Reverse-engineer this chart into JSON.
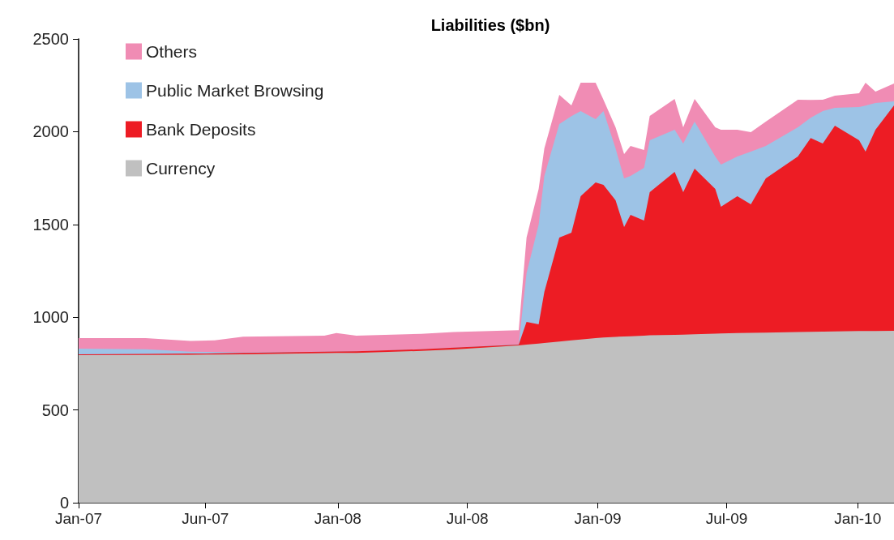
{
  "chart_data": {
    "type": "area",
    "title": "Liabilities ($bn)",
    "stacked": true,
    "legend": "top left",
    "grid": false,
    "x": [
      "2007-01-03",
      "2007-04-07",
      "2007-06-09",
      "2007-07-13",
      "2007-08-22",
      "2007-12-14",
      "2007-12-31",
      "2008-01-28",
      "2008-04-28",
      "2008-06-13",
      "2008-09-12",
      "2008-09-23",
      "2008-10-10",
      "2008-10-18",
      "2008-11-08",
      "2008-11-25",
      "2008-12-08",
      "2008-12-29",
      "2009-01-09",
      "2009-01-26",
      "2009-02-07",
      "2009-02-16",
      "2009-03-07",
      "2009-03-15",
      "2009-04-19",
      "2009-05-01",
      "2009-05-17",
      "2009-06-15",
      "2009-06-23",
      "2009-07-16",
      "2009-08-04",
      "2009-08-25",
      "2009-10-09",
      "2009-10-27",
      "2009-11-13",
      "2009-11-30",
      "2010-01-03",
      "2010-01-12",
      "2010-01-26",
      "2010-02-21"
    ],
    "series": [
      {
        "name": "Currency",
        "color": "#c0c0c0",
        "values": [
          795,
          797,
          798,
          799,
          800,
          806,
          807,
          808,
          818,
          826,
          848,
          852,
          858,
          861,
          869,
          875,
          880,
          887,
          890,
          894,
          896,
          897,
          900,
          902,
          905,
          906,
          908,
          911,
          912,
          915,
          916,
          917,
          920,
          921,
          922,
          923,
          925,
          925,
          926,
          927
        ]
      },
      {
        "name": "Bank Deposits",
        "color": "#ed1c24",
        "values": [
          5,
          5,
          6,
          6,
          7,
          8,
          8,
          8,
          9,
          10,
          4,
          123,
          103,
          275,
          560,
          580,
          772,
          839,
          823,
          736,
          590,
          655,
          621,
          772,
          878,
          768,
          893,
          780,
          683,
          737,
          692,
          831,
          946,
          1045,
          1014,
          1109,
          1029,
          967,
          1084,
          1215
        ]
      },
      {
        "name": "Public Market Browsing",
        "color": "#9dc3e6",
        "values": [
          30,
          25,
          10,
          8,
          3,
          0,
          0,
          0,
          0,
          0,
          3,
          262,
          538,
          625,
          612,
          629,
          459,
          341,
          398,
          280,
          262,
          209,
          284,
          280,
          227,
          262,
          253,
          175,
          228,
          214,
          284,
          175,
          158,
          109,
          175,
          96,
          179,
          249,
          145,
          21
        ]
      },
      {
        "name": "Others",
        "color": "#f08cb4",
        "values": [
          57,
          60,
          58,
          62,
          85,
          86,
          100,
          84,
          83,
          84,
          75,
          192,
          192,
          149,
          157,
          58,
          153,
          197,
          61,
          114,
          131,
          162,
          96,
          131,
          167,
          88,
          123,
          158,
          187,
          144,
          105,
          131,
          148,
          96,
          61,
          66,
          74,
          123,
          61,
          97
        ]
      }
    ],
    "xlim": [
      "2007-01-03",
      "2010-02-21"
    ],
    "xticks": [
      {
        "value": "2007-01-03",
        "label": "Jan-07"
      },
      {
        "value": "2007-06-30",
        "label": "Jun-07"
      },
      {
        "value": "2008-01-02",
        "label": "Jan-08"
      },
      {
        "value": "2008-07-02",
        "label": "Jul-08"
      },
      {
        "value": "2009-01-01",
        "label": "Jan-09"
      },
      {
        "value": "2009-07-01",
        "label": "Jul-09"
      },
      {
        "value": "2010-01-01",
        "label": "Jan-10"
      }
    ],
    "ylim": [
      0,
      2500
    ],
    "yticks": [
      0,
      500,
      1000,
      1500,
      2000,
      2500
    ]
  }
}
